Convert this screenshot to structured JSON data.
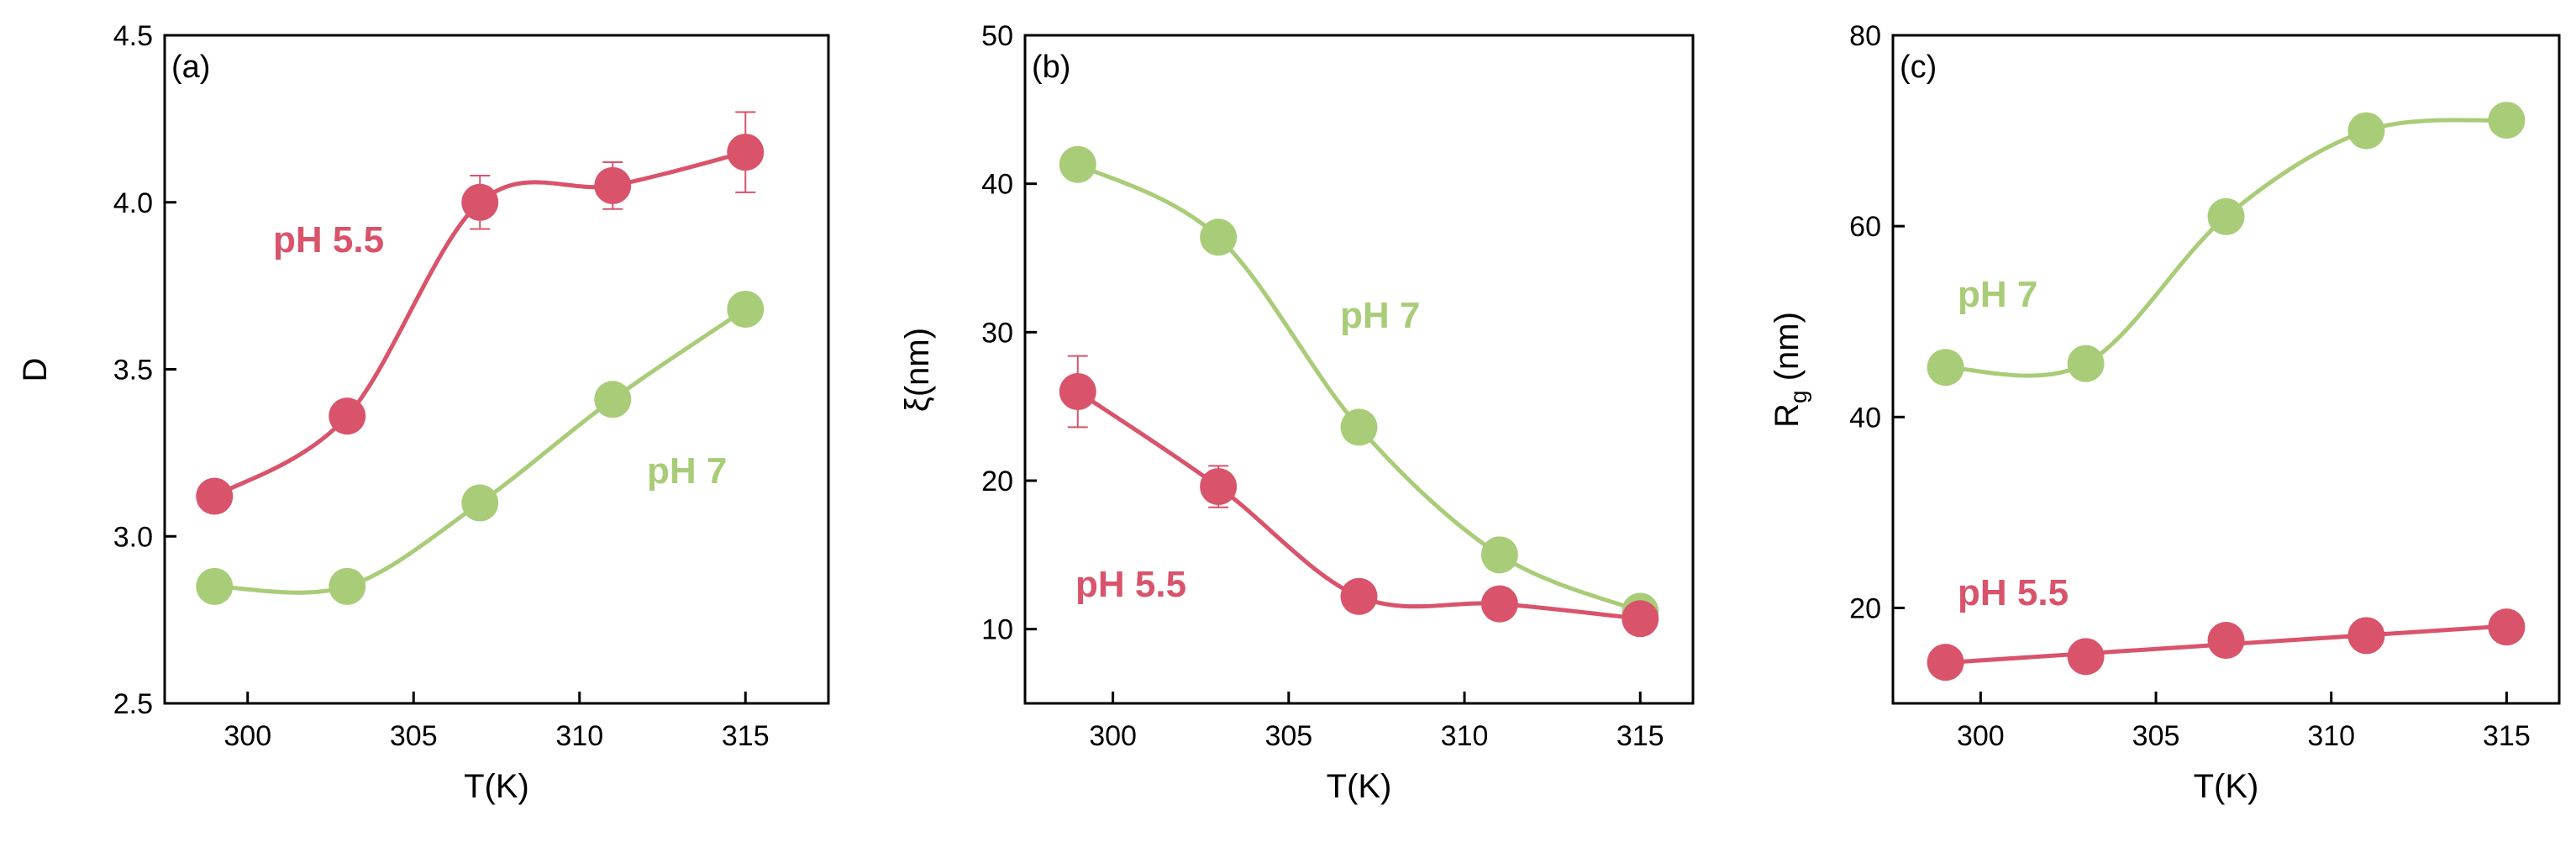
{
  "colors": {
    "pH 5.5": "#d9536b",
    "pH 7": "#a9cc78"
  },
  "chart_data": [
    {
      "type": "scatter",
      "panel": "(a)",
      "xlabel": "T(K)",
      "ylabel": "D",
      "xlim": [
        297.5,
        317.5
      ],
      "ylim": [
        2.5,
        4.5
      ],
      "xticks": [
        "300",
        "305",
        "310",
        "315"
      ],
      "yticks": [
        "2.5",
        "3.0",
        "3.5",
        "4.0",
        "4.5"
      ],
      "series": [
        {
          "name": "pH 5.5",
          "x": [
            299,
            303,
            307,
            311,
            315
          ],
          "y": [
            3.12,
            3.36,
            4.0,
            4.05,
            4.15
          ],
          "yerr": [
            0.02,
            0.03,
            0.08,
            0.07,
            0.12
          ],
          "fit": "sigmoid"
        },
        {
          "name": "pH 7",
          "x": [
            299,
            303,
            307,
            311,
            315
          ],
          "y": [
            2.85,
            2.85,
            3.1,
            3.41,
            3.68
          ],
          "yerr": [
            0.02,
            0.02,
            0.02,
            0.02,
            0.02
          ],
          "fit": "sigmoid"
        }
      ]
    },
    {
      "type": "scatter",
      "panel": "(b)",
      "xlabel": "T(K)",
      "ylabel": "ξ(nm)",
      "xlim": [
        297.5,
        316.5
      ],
      "ylim": [
        5,
        50
      ],
      "xticks": [
        "300",
        "305",
        "310",
        "315"
      ],
      "yticks": [
        "10",
        "20",
        "30",
        "40",
        "50"
      ],
      "series": [
        {
          "name": "pH 7",
          "x": [
            299,
            303,
            307,
            311,
            315
          ],
          "y": [
            41.3,
            36.4,
            23.6,
            15.0,
            11.2
          ],
          "yerr": [
            0.5,
            0.5,
            0.5,
            0.5,
            0.4
          ],
          "fit": "sigmoid"
        },
        {
          "name": "pH 5.5",
          "x": [
            299,
            303,
            307,
            311,
            315
          ],
          "y": [
            26.0,
            19.6,
            12.2,
            11.7,
            10.7
          ],
          "yerr": [
            2.4,
            1.4,
            0.6,
            0.6,
            0.5
          ],
          "fit": "sigmoid"
        }
      ]
    },
    {
      "type": "scatter",
      "panel": "(c)",
      "xlabel": "T(K)",
      "ylabel": "R",
      "ylabel_sub": "g",
      "ylabel_suffix": " (nm)",
      "xlim": [
        297.5,
        316.5
      ],
      "ylim": [
        10,
        80
      ],
      "xticks": [
        "300",
        "305",
        "310",
        "315"
      ],
      "yticks": [
        "20",
        "40",
        "60",
        "80"
      ],
      "series": [
        {
          "name": "pH 7",
          "x": [
            299,
            303,
            307,
            311,
            315
          ],
          "y": [
            45.2,
            45.6,
            61.0,
            70.0,
            71.1
          ],
          "yerr": [
            0.5,
            0.5,
            0.5,
            0.5,
            0.5
          ],
          "fit": "sigmoid"
        },
        {
          "name": "pH 5.5",
          "x": [
            299,
            303,
            307,
            311,
            315
          ],
          "y": [
            14.3,
            14.9,
            16.6,
            17.1,
            18.0
          ],
          "yerr": [
            0.4,
            0.4,
            0.4,
            0.4,
            0.4
          ],
          "fit": "line"
        }
      ]
    }
  ]
}
